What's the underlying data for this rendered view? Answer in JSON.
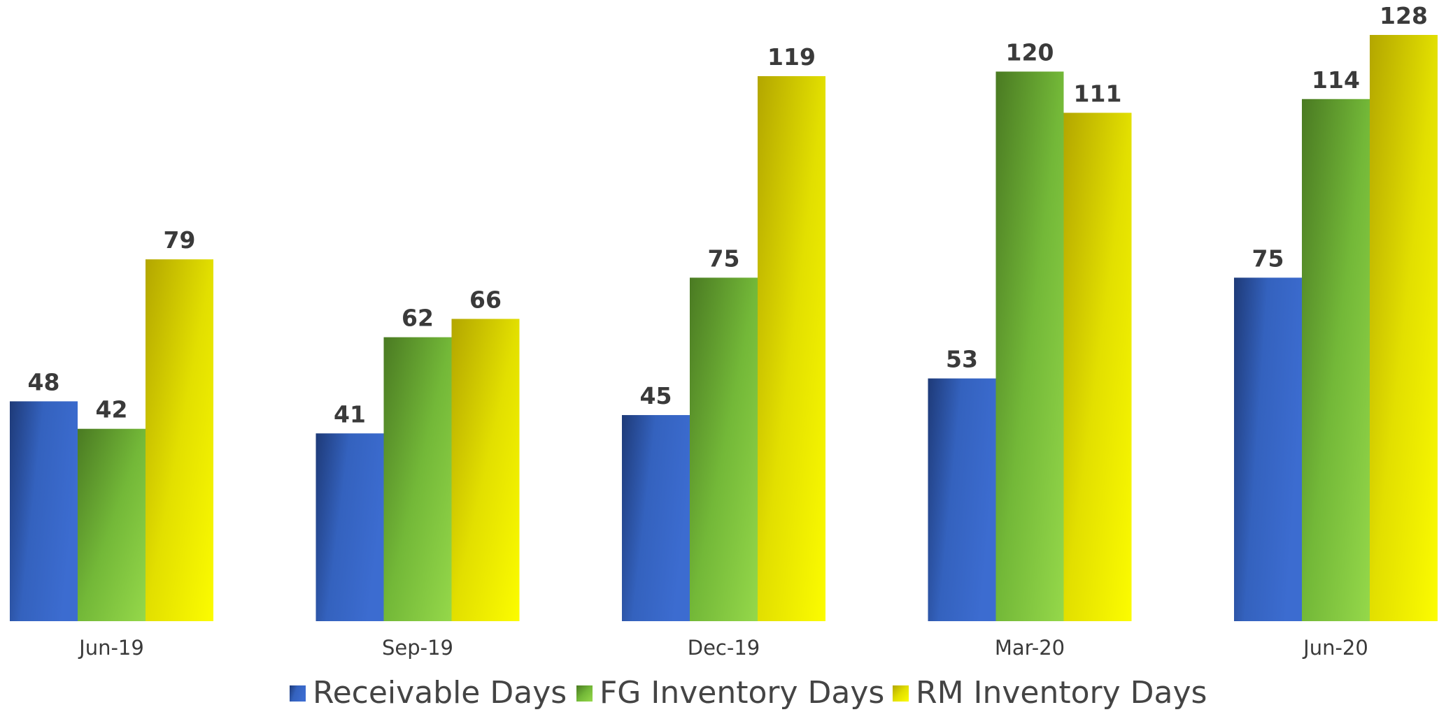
{
  "chart_data": {
    "type": "bar",
    "title": "",
    "xlabel": "",
    "ylabel": "",
    "categories": [
      "Jun-19",
      "Sep-19",
      "Dec-19",
      "Mar-20",
      "Jun-20"
    ],
    "series": [
      {
        "name": "Receivable Days",
        "values": [
          48,
          41,
          45,
          53,
          75
        ],
        "color": "#3a65c4"
      },
      {
        "name": "FG Inventory Days",
        "values": [
          42,
          62,
          75,
          120,
          114
        ],
        "color": "#6fb33a"
      },
      {
        "name": "RM Inventory Days",
        "values": [
          79,
          66,
          119,
          111,
          128
        ],
        "color": "#e8e600"
      }
    ],
    "ylim": [
      0,
      136
    ],
    "grid": false,
    "legend_position": "bottom"
  }
}
